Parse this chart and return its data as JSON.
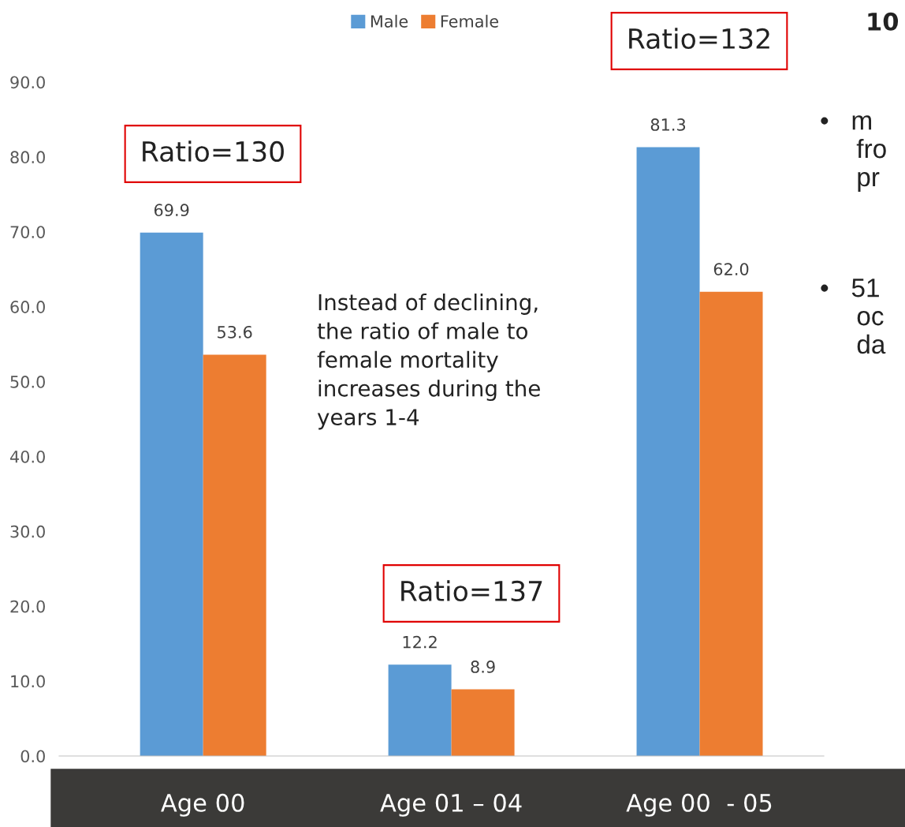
{
  "chart_data": {
    "type": "bar",
    "categories": [
      "Age 00",
      "Age 01 – 04",
      "Age 00  - 05"
    ],
    "series": [
      {
        "name": "Male",
        "color": "#5b9bd5",
        "values": [
          69.9,
          12.2,
          81.3
        ],
        "value_labels": [
          "69.9",
          "12.2",
          "81.3"
        ]
      },
      {
        "name": "Female",
        "color": "#ed7d31",
        "values": [
          53.6,
          8.9,
          62.0
        ],
        "value_labels": [
          "53.6",
          "8.9",
          "62.0"
        ]
      }
    ],
    "ylim": [
      0,
      90
    ],
    "yticks": [
      {
        "value": 0,
        "label": "0.0"
      },
      {
        "value": 10,
        "label": "10.0"
      },
      {
        "value": 20,
        "label": "20.0"
      },
      {
        "value": 30,
        "label": "30.0"
      },
      {
        "value": 40,
        "label": "40.0"
      },
      {
        "value": 50,
        "label": "50.0"
      },
      {
        "value": 60,
        "label": "60.0"
      },
      {
        "value": 70,
        "label": "70.0"
      },
      {
        "value": 80,
        "label": "80.0"
      },
      {
        "value": 90,
        "label": "90.0"
      }
    ],
    "legend": "top",
    "grid": false,
    "annotations": [
      "Ratio=130",
      "Ratio=137",
      "Ratio=132",
      "Instead of declining,\nthe ratio of male to\nfemale mortality\nincreases during the\nyears 1-4",
      "10",
      "•   m\n     fro\n     pr",
      "•   51\n     oc\n     da"
    ]
  }
}
